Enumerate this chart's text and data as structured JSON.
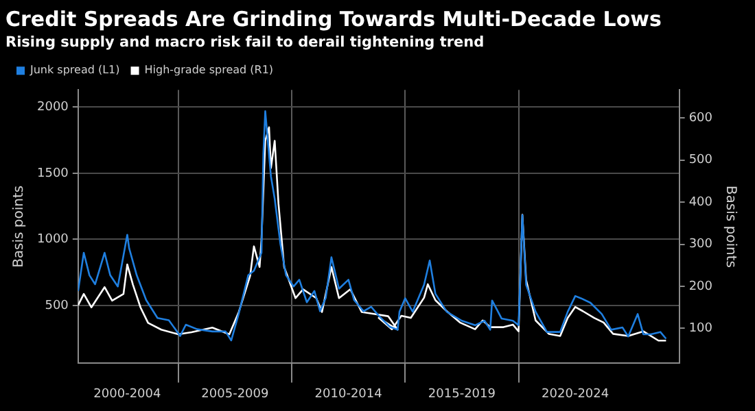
{
  "chart_data": {
    "type": "line",
    "title": "Credit Spreads Are Grinding Towards Multi-Decade Lows",
    "subtitle": "Rising supply and macro risk fail to derail tightening trend",
    "ylabel": "Basis points",
    "y2label": "Basis points",
    "xlim": [
      "2000-08",
      "2027-02"
    ],
    "xticks": [
      {
        "value": "2002-10",
        "label": "2000-2004"
      },
      {
        "value": "2005-01",
        "label": null
      },
      {
        "value": "2007-07",
        "label": "2005-2009"
      },
      {
        "value": "2010-01",
        "label": null
      },
      {
        "value": "2012-07",
        "label": "2010-2014"
      },
      {
        "value": "2015-01",
        "label": null
      },
      {
        "value": "2017-07",
        "label": "2015-2019"
      },
      {
        "value": "2020-01",
        "label": null
      },
      {
        "value": "2022-07",
        "label": "2020-2024"
      }
    ],
    "ylim": [
      62,
      2130
    ],
    "yticks": [
      500,
      1000,
      1500,
      2000
    ],
    "y2lim": [
      17,
      667
    ],
    "y2ticks": [
      100,
      200,
      300,
      400,
      500,
      600
    ],
    "grid": true,
    "legend": "top left",
    "series": [
      {
        "name": "High-grade spread (R1)",
        "color": "#ffffff",
        "axis": "y2",
        "x": [
          "2000-08",
          "2000-11",
          "2001-03",
          "2001-10",
          "2002-02",
          "2002-08",
          "2002-10",
          "2003-01",
          "2003-05",
          "2003-09",
          "2004-04",
          "2005-01",
          "2005-08",
          "2006-07",
          "2007-04",
          "2007-09",
          "2008-03",
          "2008-05",
          "2008-08",
          "2008-09",
          "2008-11",
          "2009-01",
          "2009-02",
          "2009-04",
          "2009-06",
          "2009-09",
          "2010-03",
          "2010-07",
          "2011-02",
          "2011-05",
          "2011-10",
          "2012-02",
          "2012-08",
          "2013-02",
          "2013-09",
          "2014-04",
          "2014-09",
          "2013-11",
          "2014-06",
          "2014-11",
          "2015-04",
          "2015-11",
          "2016-01",
          "2016-05",
          "2016-11",
          "2017-06",
          "2018-02",
          "2018-06",
          "2018-10",
          "2019-05",
          "2019-10",
          "2020-01",
          "2020-03",
          "2020-05",
          "2020-10",
          "2021-05",
          "2021-11",
          "2022-03",
          "2022-07",
          "2022-11",
          "2023-05",
          "2023-10",
          "2024-03",
          "2024-11",
          "2025-07",
          "2026-03",
          "2026-07"
        ],
        "values": [
          155,
          182,
          150,
          198,
          166,
          182,
          252,
          204,
          150,
          113,
          97,
          86,
          91,
          102,
          86,
          139,
          225,
          295,
          246,
          311,
          546,
          578,
          481,
          546,
          396,
          246,
          172,
          193,
          172,
          139,
          246,
          172,
          193,
          139,
          134,
          129,
          97,
          125,
          98,
          130,
          125,
          173,
          205,
          167,
          141,
          114,
          98,
          119,
          103,
          103,
          109,
          93,
          370,
          215,
          119,
          87,
          82,
          125,
          151,
          141,
          125,
          114,
          87,
          82,
          93,
          71,
          71
        ]
      },
      {
        "name": "Junk spread (L1)",
        "color": "#1f7fe0",
        "axis": "y",
        "x": [
          "2000-08",
          "2000-11",
          "2001-02",
          "2001-05",
          "2001-10",
          "2002-01",
          "2002-05",
          "2002-10",
          "2002-11",
          "2003-03",
          "2003-08",
          "2004-02",
          "2004-08",
          "2005-02",
          "2005-05",
          "2005-11",
          "2006-07",
          "2007-02",
          "2007-05",
          "2007-09",
          "2008-02",
          "2008-05",
          "2008-09",
          "2008-10",
          "2008-11",
          "2009-02",
          "2009-04",
          "2009-07",
          "2009-10",
          "2010-02",
          "2010-05",
          "2010-09",
          "2011-01",
          "2011-04",
          "2011-07",
          "2011-10",
          "2012-02",
          "2012-07",
          "2012-10",
          "2013-03",
          "2013-07",
          "2013-11",
          "2014-05",
          "2014-09",
          "2014-10",
          "2015-01",
          "2015-05",
          "2015-11",
          "2016-02",
          "2016-05",
          "2016-11",
          "2017-07",
          "2018-02",
          "2018-07",
          "2018-10",
          "2018-11",
          "2019-04",
          "2019-10",
          "2020-01",
          "2020-03",
          "2020-05",
          "2020-10",
          "2021-04",
          "2021-11",
          "2022-03",
          "2022-07",
          "2022-10",
          "2023-03",
          "2023-09",
          "2024-02",
          "2024-08",
          "2024-11",
          "2025-04",
          "2025-07",
          "2025-11",
          "2026-04",
          "2026-07"
        ],
        "values": [
          609,
          898,
          728,
          660,
          898,
          728,
          643,
          1034,
          932,
          728,
          541,
          405,
          388,
          269,
          354,
          320,
          303,
          303,
          235,
          439,
          728,
          762,
          898,
          1646,
          1969,
          1476,
          1306,
          966,
          728,
          643,
          694,
          524,
          609,
          456,
          558,
          864,
          626,
          694,
          541,
          456,
          490,
          422,
          337,
          316,
          452,
          554,
          452,
          656,
          840,
          588,
          452,
          384,
          350,
          384,
          316,
          537,
          401,
          384,
          350,
          1183,
          656,
          452,
          299,
          299,
          452,
          571,
          554,
          520,
          435,
          316,
          333,
          265,
          435,
          282,
          282,
          299,
          248
        ]
      }
    ]
  }
}
